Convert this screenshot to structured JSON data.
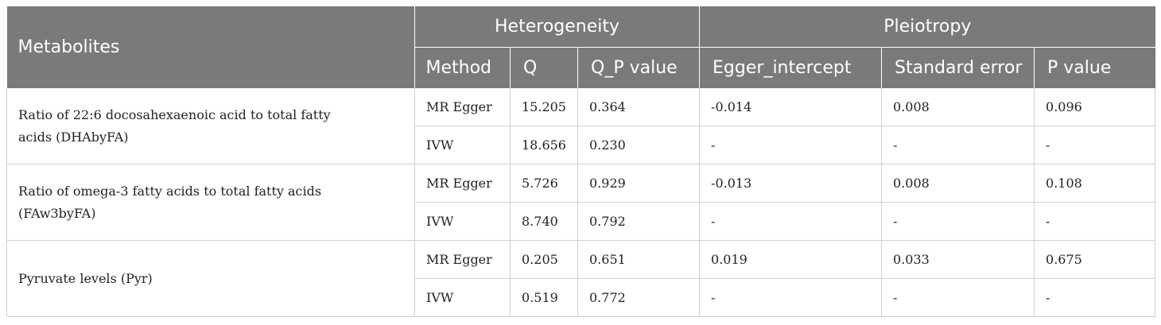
{
  "header": {
    "metabolites": "Metabolites",
    "heterogeneity": "Heterogeneity",
    "pleiotropy": "Pleiotropy",
    "method": "Method",
    "q": "Q",
    "q_p_value": "Q_P value",
    "egger_intercept": "Egger_intercept",
    "standard_error": "Standard error",
    "p_value": "P value"
  },
  "rows": [
    {
      "metabolite": "Ratio of 22:6 docosahexaenoic acid to total fatty acids (DHAbyFA)",
      "methods": [
        {
          "method": "MR Egger",
          "q": "15.205",
          "qp": "0.364",
          "egger": "-0.014",
          "se": "0.008",
          "p": "0.096"
        },
        {
          "method": "IVW",
          "q": "18.656",
          "qp": "0.230",
          "egger": "-",
          "se": "-",
          "p": "-"
        }
      ]
    },
    {
      "metabolite": "Ratio of omega-3 fatty acids to total fatty acids (FAw3byFA)",
      "methods": [
        {
          "method": "MR Egger",
          "q": "5.726",
          "qp": "0.929",
          "egger": "-0.013",
          "se": "0.008",
          "p": "0.108"
        },
        {
          "method": "IVW",
          "q": "8.740",
          "qp": "0.792",
          "egger": "-",
          "se": "-",
          "p": "-"
        }
      ]
    },
    {
      "metabolite": "Pyruvate levels (Pyr)",
      "methods": [
        {
          "method": "MR Egger",
          "q": "0.205",
          "qp": "0.651",
          "egger": "0.019",
          "se": "0.033",
          "p": "0.675"
        },
        {
          "method": "IVW",
          "q": "0.519",
          "qp": "0.772",
          "egger": "-",
          "se": "-",
          "p": "-"
        }
      ]
    }
  ]
}
